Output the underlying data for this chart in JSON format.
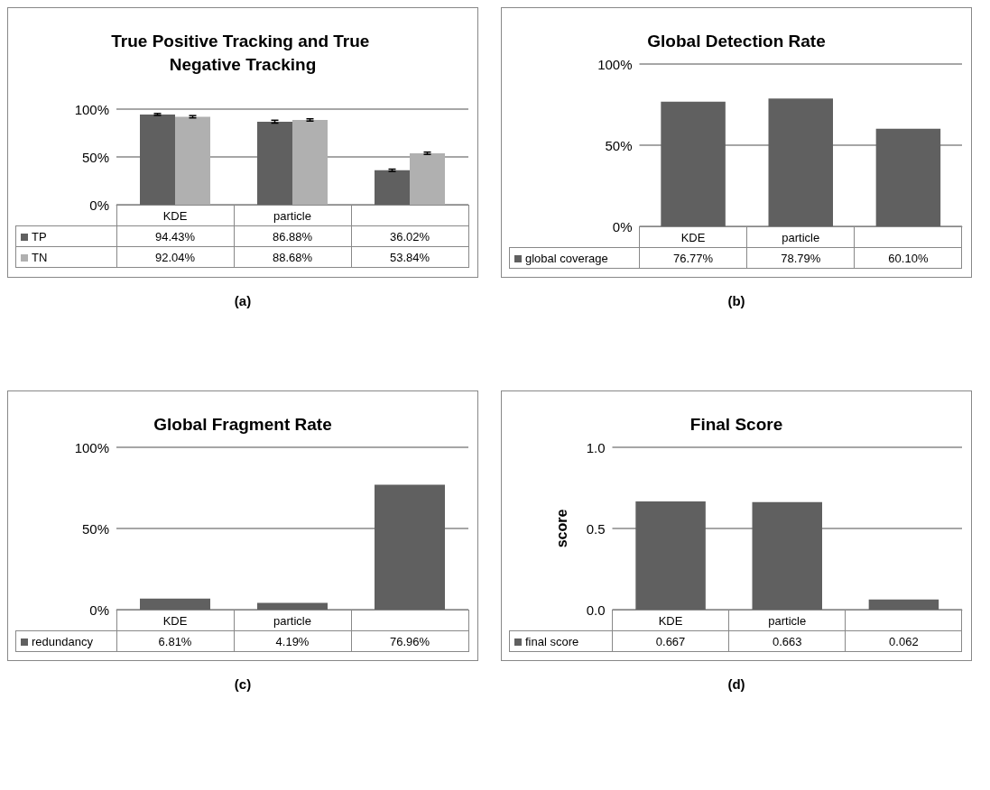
{
  "chart_data": [
    {
      "type": "bar",
      "title": "True Positive Tracking and True Negative Tracking",
      "categories": [
        "KDE",
        "particle",
        null
      ],
      "series": [
        {
          "name": "TP",
          "color": "#606060",
          "values": [
            94.43,
            86.88,
            36.02
          ],
          "value_labels": [
            "94.43%",
            "86.88%",
            "36.02%"
          ],
          "errors": [
            1,
            1.5,
            1.2
          ]
        },
        {
          "name": "TN",
          "color": "#b0b0b0",
          "values": [
            92.04,
            88.68,
            53.84
          ],
          "value_labels": [
            "92.04%",
            "88.68%",
            "53.84%"
          ],
          "errors": [
            1.2,
            1.2,
            1.2
          ]
        }
      ],
      "ylim": [
        0,
        100
      ],
      "yticks": [
        {
          "value": 0,
          "label": "0%"
        },
        {
          "value": 50,
          "label": "50%"
        },
        {
          "value": 100,
          "label": "100%"
        }
      ],
      "grid": "y",
      "legend": "bottom",
      "annotations": [
        "(a)"
      ]
    },
    {
      "type": "bar",
      "title": "Global Detection Rate",
      "categories": [
        "KDE",
        "particle",
        null
      ],
      "series": [
        {
          "name": "global coverage",
          "color": "#606060",
          "values": [
            76.77,
            78.79,
            60.1
          ],
          "value_labels": [
            "76.77%",
            "78.79%",
            "60.10%"
          ]
        }
      ],
      "ylim": [
        0,
        100
      ],
      "yticks": [
        {
          "value": 0,
          "label": "0%"
        },
        {
          "value": 50,
          "label": "50%"
        },
        {
          "value": 100,
          "label": "100%"
        }
      ],
      "grid": "y",
      "legend": "bottom",
      "annotations": [
        "(b)"
      ]
    },
    {
      "type": "bar",
      "title": "Global Fragment Rate",
      "categories": [
        "KDE",
        "particle",
        null
      ],
      "series": [
        {
          "name": "redundancy",
          "color": "#606060",
          "values": [
            6.81,
            4.19,
            76.96
          ],
          "value_labels": [
            "6.81%",
            "4.19%",
            "76.96%"
          ]
        }
      ],
      "ylim": [
        0,
        100
      ],
      "yticks": [
        {
          "value": 0,
          "label": "0%"
        },
        {
          "value": 50,
          "label": "50%"
        },
        {
          "value": 100,
          "label": "100%"
        }
      ],
      "grid": "y",
      "legend": "bottom",
      "annotations": [
        "(c)"
      ]
    },
    {
      "type": "bar",
      "title": "Final Score",
      "ylabel": "score",
      "categories": [
        "KDE",
        "particle",
        null
      ],
      "series": [
        {
          "name": "final score",
          "color": "#606060",
          "values": [
            0.667,
            0.663,
            0.062
          ],
          "value_labels": [
            "0.667",
            "0.663",
            "0.062"
          ]
        }
      ],
      "ylim": [
        0,
        1
      ],
      "yticks": [
        {
          "value": 0,
          "label": "0.0"
        },
        {
          "value": 0.5,
          "label": "0.5"
        },
        {
          "value": 1,
          "label": "1.0"
        }
      ],
      "grid": "y",
      "legend": "bottom",
      "annotations": [
        "(d)"
      ]
    }
  ]
}
